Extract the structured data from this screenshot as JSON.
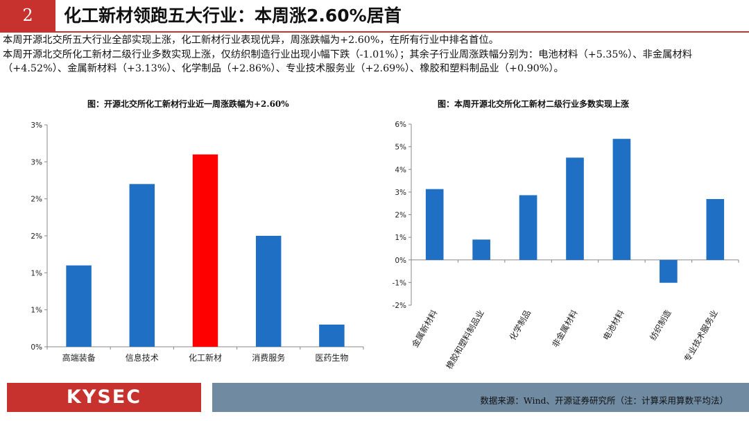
{
  "header": {
    "section_number": "2",
    "title": "化工新材领跑五大行业：本周涨2.60%居首"
  },
  "body": {
    "paragraph_1": "本周开源北交所五大行业全部实现上涨，化工新材行业表现优异，周涨跌幅为+2.60%，在所有行业中排名首位。",
    "paragraph_2": "本周开源北交所化工新材二级行业多数实现上涨，仅纺织制造行业出现小幅下跌（-1.01%）；其余子行业周涨跌幅分别为：电池材料（+5.35%）、非金属材料（+4.52%）、金属新材料（+3.13%）、化学制品（+2.86%）、专业技术服务业（+2.69%）、橡胶和塑料制品业（+0.90%）。"
  },
  "chart_data": [
    {
      "type": "bar",
      "title": "图：开源北交所化工新材行业近一周涨跌幅为+2.60%",
      "categories": [
        "高端装备",
        "信息技术",
        "化工新材",
        "消费服务",
        "医药生物"
      ],
      "values": [
        1.1,
        2.2,
        2.6,
        1.5,
        0.3
      ],
      "ylim": [
        0,
        3
      ],
      "y_ticks": [
        0,
        0.5,
        1,
        1.5,
        2,
        2.5,
        3
      ],
      "y_tick_labels": [
        "0%",
        "1%",
        "1%",
        "2%",
        "2%",
        "3%",
        "3%"
      ],
      "bar_colors": [
        "#1f6fc4",
        "#1f6fc4",
        "#ff0000",
        "#1f6fc4",
        "#1f6fc4"
      ],
      "grid": false,
      "legend": "none"
    },
    {
      "type": "bar",
      "title": "图：本周开源北交所化工新材二级行业多数实现上涨",
      "categories": [
        "金属新材料",
        "橡胶和塑料制品业",
        "化学制品",
        "非金属材料",
        "电池材料",
        "纺织制造",
        "专业技术服务业"
      ],
      "values": [
        3.13,
        0.9,
        2.86,
        4.52,
        5.35,
        -1.01,
        2.69
      ],
      "ylim": [
        -2,
        6
      ],
      "y_ticks": [
        -2,
        -1,
        0,
        1,
        2,
        3,
        4,
        5,
        6
      ],
      "y_tick_labels": [
        "-2%",
        "-1%",
        "0%",
        "1%",
        "2%",
        "3%",
        "4%",
        "5%",
        "6%"
      ],
      "bar_color": "#1f6fc4",
      "grid": false,
      "legend": "none"
    }
  ],
  "footer": {
    "logo": "KYSEC",
    "source": "数据来源：Wind、开源证券研究所（注：计算采用算数平均法）"
  },
  "colors": {
    "accent_red": "#c8322e",
    "bar_blue": "#1f6fc4",
    "highlight_red": "#ff0000",
    "footer_slate": "#6f8aa1"
  }
}
